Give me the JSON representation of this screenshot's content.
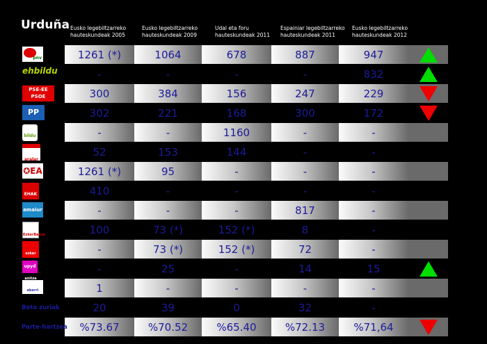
{
  "title": "Urduña",
  "headers": [
    "Eusko legebiltzarreko hauteskundeak 2005",
    "Eusko legebiltzarreko hauteskundeak 2009",
    "Udal eta foru hauteskundeak 2011",
    "Espainiar legebiltzarreko hauteskundeak 2011",
    "Eusko legebiltzarreko hauteskundeak 2012"
  ],
  "rows": [
    {
      "logo": "eaj-pnv-logo",
      "logo_text": "eaj pnv",
      "values": [
        "1261 (*)",
        "1064",
        "678",
        "887",
        "947"
      ],
      "trend": "up"
    },
    {
      "logo": "ehbildu-logo",
      "logo_text": "ehbildu",
      "values": [
        "-",
        "-",
        "-",
        "-",
        "832"
      ],
      "trend": "up"
    },
    {
      "logo": "pse-ee-psoe-logo",
      "logo_text": "PSE-EE PSOE",
      "values": [
        "300",
        "384",
        "156",
        "247",
        "229"
      ],
      "trend": "down"
    },
    {
      "logo": "pp-logo",
      "logo_text": "PP",
      "values": [
        "302",
        "221",
        "168",
        "300",
        "172"
      ],
      "trend": "down"
    },
    {
      "logo": "bildu-logo",
      "logo_text": "bildu",
      "values": [
        "-",
        "-",
        "1160",
        "-",
        "-"
      ],
      "trend": ""
    },
    {
      "logo": "aralar-logo",
      "logo_text": "aralar",
      "values": [
        "52",
        "153",
        "144",
        "-",
        "-"
      ],
      "trend": ""
    },
    {
      "logo": "ea-logo",
      "logo_text": "EA",
      "values": [
        "1261 (*)",
        "95",
        "-",
        "-",
        "-"
      ],
      "trend": ""
    },
    {
      "logo": "ehak-logo",
      "logo_text": "EHAK",
      "values": [
        "410",
        "-",
        "-",
        "-",
        "-"
      ],
      "trend": ""
    },
    {
      "logo": "amaiur-logo",
      "logo_text": "amaiur",
      "values": [
        "-",
        "-",
        "-",
        "817",
        "-"
      ],
      "trend": ""
    },
    {
      "logo": "ezker-batua-logo",
      "logo_text": "Ezker Batua",
      "values": [
        "100",
        "73 (*)",
        "152 (*)",
        "8",
        "-"
      ],
      "trend": ""
    },
    {
      "logo": "ezker-anitza-logo",
      "logo_text": "ezker anitza",
      "values": [
        "-",
        "73 (*)",
        "152 (*)",
        "72",
        "-"
      ],
      "trend": ""
    },
    {
      "logo": "upyd-logo",
      "logo_text": "upyd",
      "values": [
        "-",
        "25",
        "-",
        "14",
        "15"
      ],
      "trend": "up"
    },
    {
      "logo": "aberri-logo",
      "logo_text": "aberri",
      "values": [
        "1",
        "-",
        "-",
        "-",
        "-"
      ],
      "trend": ""
    },
    {
      "label": "Boto zuriak",
      "values": [
        "20",
        "39",
        "0",
        "32",
        "-"
      ],
      "trend": ""
    },
    {
      "label": "Parte-hartzea",
      "values": [
        "%73.67",
        "%70.52",
        "%65.40",
        "%72.13",
        "%71,64"
      ],
      "trend": "down"
    }
  ],
  "colors": {
    "up": "#00dd00",
    "down": "#ee0000",
    "value_text": "#1b1b9a"
  }
}
